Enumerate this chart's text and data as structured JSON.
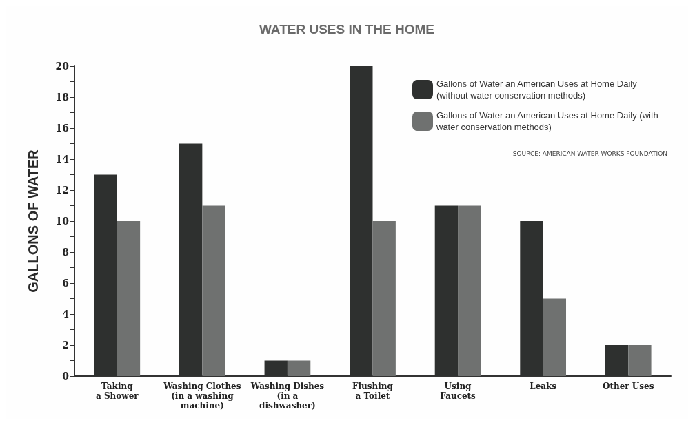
{
  "chart_data": {
    "type": "bar",
    "title": "WATER USES IN THE HOME",
    "ylabel": "GALLONS OF WATER",
    "categories": [
      "Taking\na Shower",
      "Washing Clothes\n(in a washing\nmachine)",
      "Washing Dishes\n(in a\ndishwasher)",
      "Flushing\na Toilet",
      "Using\nFaucets",
      "Leaks",
      "Other Uses"
    ],
    "series": [
      {
        "name": "Gallons of Water an American Uses at Home Daily (without water conservation methods)",
        "color": "#2e302f",
        "values": [
          13,
          15,
          1,
          20,
          11,
          10,
          2
        ]
      },
      {
        "name": "Gallons of Water an American Uses at Home Daily (with water conservation methods)",
        "color": "#6f7170",
        "values": [
          10,
          11,
          1,
          10,
          11,
          5,
          2
        ]
      }
    ],
    "ylim": [
      0,
      20
    ],
    "yticks": [
      0,
      {
        "value": 1,
        "label": null
      },
      2,
      {
        "value": 3,
        "label": null
      },
      4,
      {
        "value": 5,
        "label": null
      },
      6,
      {
        "value": 7,
        "label": null
      },
      8,
      {
        "value": 9,
        "label": null
      },
      10,
      {
        "value": 11,
        "label": null
      },
      12,
      {
        "value": 13,
        "label": null
      },
      14,
      {
        "value": 15,
        "label": null
      },
      16,
      {
        "value": 17,
        "label": null
      },
      18,
      {
        "value": 19,
        "label": null
      },
      20
    ],
    "grid": false,
    "legend": "top right",
    "annotations": [
      "SOURCE: AMERICAN WATER WORKS FOUNDATION"
    ]
  }
}
